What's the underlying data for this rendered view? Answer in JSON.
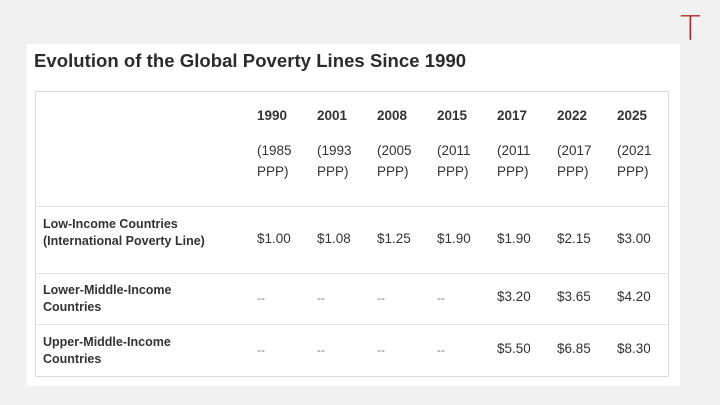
{
  "logo_text": "T",
  "title": "Evolution of the Global Poverty Lines Since 1990",
  "columns": [
    {
      "year": "1990",
      "ppp1": "(1985",
      "ppp2": "PPP)"
    },
    {
      "year": "2001",
      "ppp1": "(1993",
      "ppp2": "PPP)"
    },
    {
      "year": "2008",
      "ppp1": "(2005",
      "ppp2": "PPP)"
    },
    {
      "year": "2015",
      "ppp1": "(2011",
      "ppp2": "PPP)"
    },
    {
      "year": "2017",
      "ppp1": "(2011",
      "ppp2": "PPP)"
    },
    {
      "year": "2022",
      "ppp1": "(2017",
      "ppp2": "PPP)"
    },
    {
      "year": "2025",
      "ppp1": "(2021",
      "ppp2": "PPP)"
    }
  ],
  "rows": [
    {
      "label1": "Low-Income Countries",
      "label2": "(International Poverty Line)",
      "values": [
        "$1.00",
        "$1.08",
        "$1.25",
        "$1.90",
        "$1.90",
        "$2.15",
        "$3.00"
      ]
    },
    {
      "label1": "Lower-Middle-Income",
      "label2": "Countries",
      "values": [
        "--",
        "--",
        "--",
        "--",
        "$3.20",
        "$3.65",
        "$4.20"
      ]
    },
    {
      "label1": "Upper-Middle-Income",
      "label2": "Countries",
      "values": [
        "--",
        "--",
        "--",
        "--",
        "$5.50",
        "$6.85",
        "$8.30"
      ]
    }
  ],
  "colors": {
    "logo": "#b3262b",
    "text": "#333333",
    "border": "#dcdcdc"
  }
}
